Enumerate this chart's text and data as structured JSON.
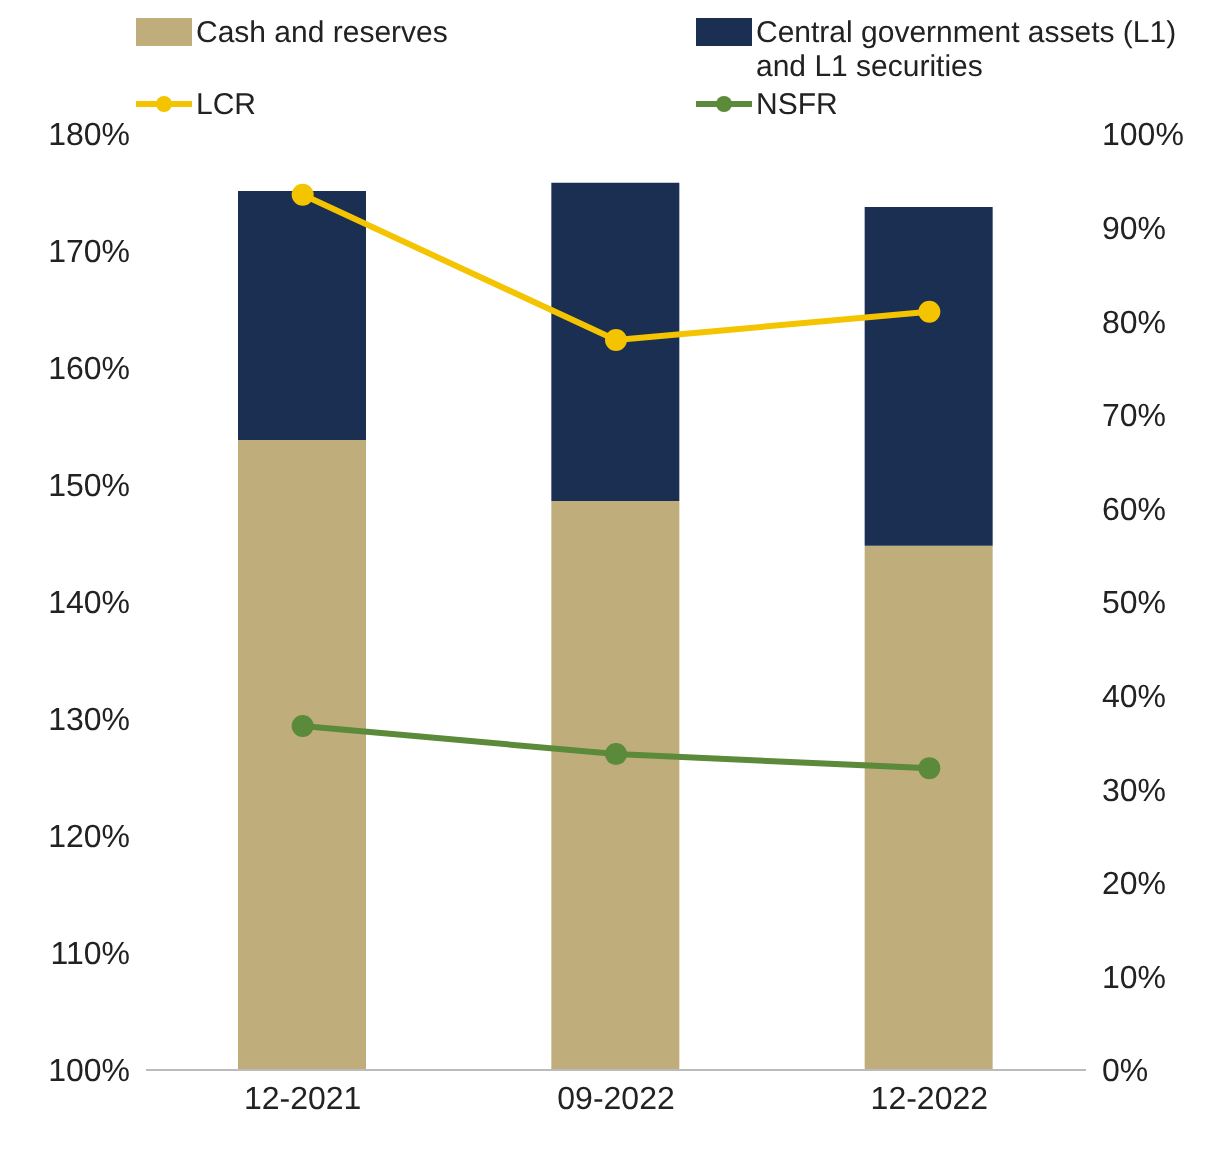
{
  "chart_data": {
    "type": "bar",
    "categories": [
      "12-2021",
      "09-2022",
      "12-2022"
    ],
    "stacked": true,
    "legend": "top",
    "marker": "circle",
    "ylim": [
      100,
      180
    ],
    "yticks": [
      {
        "value": 100,
        "label": "100%"
      },
      {
        "value": 110,
        "label": "110%"
      },
      {
        "value": 120,
        "label": "120%"
      },
      {
        "value": 130,
        "label": "130%"
      },
      {
        "value": 140,
        "label": "140%"
      },
      {
        "value": 150,
        "label": "150%"
      },
      {
        "value": 160,
        "label": "160%"
      },
      {
        "value": 170,
        "label": "170%"
      },
      {
        "value": 180,
        "label": "180%"
      }
    ],
    "y2lim": [
      0,
      100
    ],
    "y2ticks": [
      {
        "value": 0,
        "label": "0%"
      },
      {
        "value": 10,
        "label": "10%"
      },
      {
        "value": 20,
        "label": "20%"
      },
      {
        "value": 30,
        "label": "30%"
      },
      {
        "value": 40,
        "label": "40%"
      },
      {
        "value": 50,
        "label": "50%"
      },
      {
        "value": 60,
        "label": "60%"
      },
      {
        "value": 70,
        "label": "70%"
      },
      {
        "value": 80,
        "label": "80%"
      },
      {
        "value": 90,
        "label": "90%"
      },
      {
        "value": 100,
        "label": "100%"
      }
    ],
    "series": [
      {
        "name": "Cash and reserves",
        "axis": "y2",
        "color": "#bfae7c",
        "values": [
          67.3,
          60.8,
          56.0
        ]
      },
      {
        "name": "Central government assets (L1) and L1 securities",
        "axis": "y2",
        "color": "#1a2f52",
        "values": [
          26.6,
          34.0,
          36.2
        ]
      },
      {
        "name": "LCR",
        "type": "line",
        "color": "#f5c400",
        "values": [
          174.8,
          162.4,
          164.8
        ]
      },
      {
        "name": "NSFR",
        "type": "line",
        "color": "#5a8a3a",
        "values": [
          129.4,
          127.0,
          125.8
        ]
      }
    ]
  }
}
